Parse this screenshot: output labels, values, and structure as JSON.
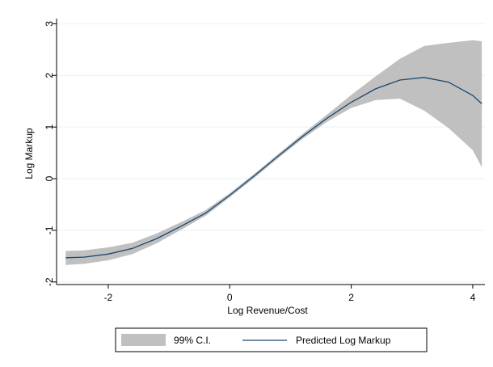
{
  "chart_data": {
    "type": "line",
    "title": "",
    "xlabel": "Log Revenue/Cost",
    "ylabel": "Log Markup",
    "xlim": [
      -2.85,
      4.2
    ],
    "ylim": [
      -2.05,
      3.1
    ],
    "xticks": [
      -2,
      0,
      2,
      4
    ],
    "yticks": [
      -2,
      -1,
      0,
      1,
      2,
      3
    ],
    "xtick_labels": [
      "-2",
      "0",
      "2",
      "4"
    ],
    "ytick_labels": [
      "-2",
      "-1",
      "0",
      "1",
      "2",
      "3"
    ],
    "grid": true,
    "legend_position": "bottom",
    "legend": [
      {
        "label": "99% C.I.",
        "kind": "band"
      },
      {
        "label": "Predicted Log Markup",
        "kind": "line"
      }
    ],
    "colors": {
      "band": "#c0c0c0",
      "line": "#1a476f",
      "grid": "#eaf2f3",
      "axis": "#000000"
    },
    "series": [
      {
        "name": "Predicted Log Markup",
        "kind": "line",
        "x": [
          -2.7,
          -2.4,
          -2.0,
          -1.6,
          -1.2,
          -0.8,
          -0.4,
          0.0,
          0.4,
          0.8,
          1.2,
          1.6,
          2.0,
          2.4,
          2.8,
          3.2,
          3.6,
          4.0,
          4.15
        ],
        "y": [
          -1.53,
          -1.52,
          -1.46,
          -1.35,
          -1.16,
          -0.92,
          -0.67,
          -0.32,
          0.05,
          0.44,
          0.82,
          1.17,
          1.48,
          1.74,
          1.91,
          1.96,
          1.87,
          1.61,
          1.45
        ]
      },
      {
        "name": "99% C.I.",
        "kind": "band",
        "x": [
          -2.7,
          -2.4,
          -2.0,
          -1.6,
          -1.2,
          -0.8,
          -0.4,
          0.0,
          0.4,
          0.8,
          1.2,
          1.6,
          2.0,
          2.4,
          2.8,
          3.2,
          3.6,
          4.0,
          4.15
        ],
        "lower": [
          -1.67,
          -1.65,
          -1.58,
          -1.46,
          -1.25,
          -0.99,
          -0.72,
          -0.36,
          0.01,
          0.4,
          0.77,
          1.1,
          1.37,
          1.52,
          1.55,
          1.32,
          0.98,
          0.55,
          0.22
        ],
        "upper": [
          -1.4,
          -1.39,
          -1.33,
          -1.24,
          -1.06,
          -0.84,
          -0.61,
          -0.28,
          0.09,
          0.48,
          0.87,
          1.24,
          1.62,
          1.98,
          2.32,
          2.57,
          2.63,
          2.68,
          2.66
        ]
      }
    ]
  }
}
